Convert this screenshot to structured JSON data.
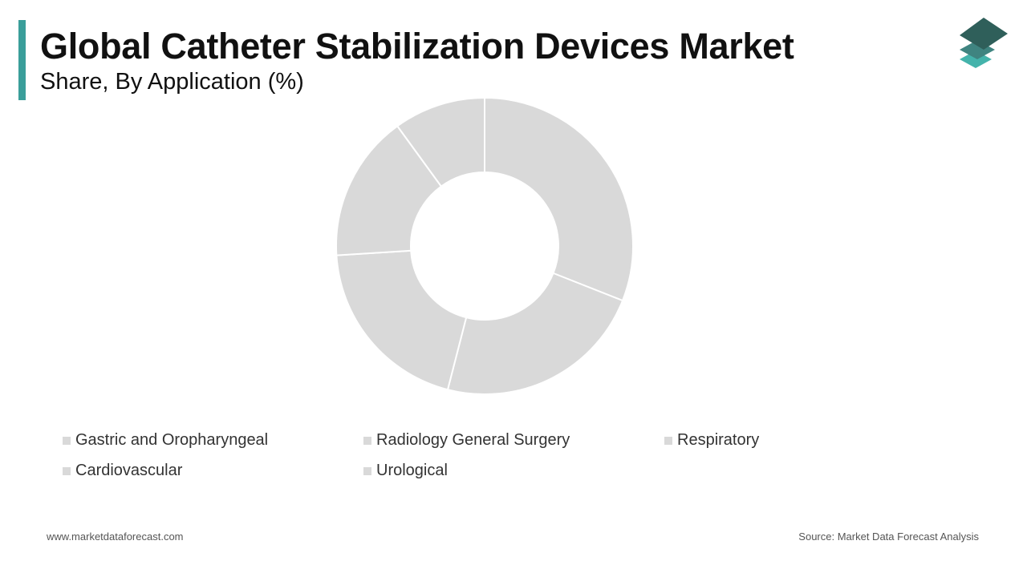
{
  "header": {
    "title": "Global Catheter Stabilization Devices Market",
    "subtitle": "Share, By Application (%)"
  },
  "colors": {
    "accent": "#3a9e9a",
    "slice": "#d9d9d9",
    "slice_border": "#ffffff",
    "logo_dark": "#2f5f5a",
    "logo_mid": "#3f8480",
    "logo_light": "#44b3ab"
  },
  "chart_data": {
    "type": "pie",
    "variant": "donut",
    "categories": [
      "Gastric and Oropharyngeal",
      "Radiology General Surgery",
      "Respiratory",
      "Cardiovascular",
      "Urological"
    ],
    "values": [
      31,
      23,
      20,
      16,
      10
    ],
    "legend": "bottom"
  },
  "footer": {
    "website": "www.marketdataforecast.com",
    "source": "Source: Market Data Forecast Analysis"
  },
  "icons": {
    "logo": "stacked-layers-icon"
  }
}
